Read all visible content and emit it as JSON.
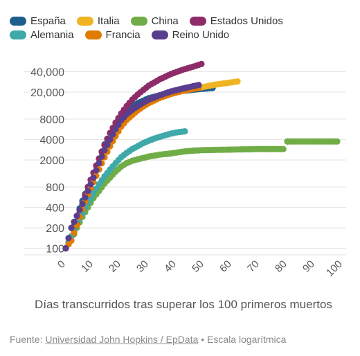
{
  "chart_data": {
    "type": "scatter",
    "xlabel": "Días transcurridos tras superar los 100 primeros muertos",
    "ylabel": "",
    "y_scale": "log",
    "x_ticks": [
      0,
      10,
      20,
      30,
      40,
      50,
      60,
      70,
      80,
      90,
      100
    ],
    "y_ticks": [
      "100",
      "200",
      "400",
      "800",
      "2000",
      "4000",
      "8000",
      "20,000",
      "40,000"
    ],
    "y_tick_values": [
      100,
      200,
      400,
      800,
      2000,
      4000,
      8000,
      20000,
      40000
    ],
    "xlim": [
      0,
      100
    ],
    "ylim": [
      80,
      55000
    ],
    "grid": "horizontal",
    "legend_placement": "top",
    "legend_rows": [
      [
        "España",
        "Italia",
        "China",
        "Estados Unidos"
      ],
      [
        "Alemania",
        "Francia",
        "Reino Unido"
      ]
    ],
    "series": [
      {
        "name": "España",
        "color": "#1f5f8b",
        "points": [
          [
            0,
            100
          ],
          [
            2,
            150
          ],
          [
            4,
            300
          ],
          [
            6,
            500
          ],
          [
            8,
            800
          ],
          [
            10,
            1300
          ],
          [
            12,
            2100
          ],
          [
            14,
            3400
          ],
          [
            16,
            5000
          ],
          [
            18,
            7000
          ],
          [
            20,
            9000
          ],
          [
            22,
            11000
          ],
          [
            24,
            12500
          ],
          [
            26,
            13800
          ],
          [
            28,
            15000
          ],
          [
            30,
            16300
          ],
          [
            34,
            18000
          ],
          [
            38,
            19500
          ],
          [
            42,
            20800
          ],
          [
            46,
            21700
          ],
          [
            50,
            22500
          ],
          [
            53,
            23000
          ]
        ]
      },
      {
        "name": "Italia",
        "color": "#f0b323",
        "points": [
          [
            0,
            100
          ],
          [
            2,
            150
          ],
          [
            4,
            250
          ],
          [
            6,
            450
          ],
          [
            8,
            700
          ],
          [
            10,
            1100
          ],
          [
            12,
            1800
          ],
          [
            14,
            2600
          ],
          [
            16,
            3500
          ],
          [
            18,
            4800
          ],
          [
            20,
            6200
          ],
          [
            22,
            8000
          ],
          [
            24,
            9800
          ],
          [
            26,
            11500
          ],
          [
            28,
            13000
          ],
          [
            30,
            14600
          ],
          [
            34,
            17000
          ],
          [
            38,
            19000
          ],
          [
            42,
            20800
          ],
          [
            46,
            22500
          ],
          [
            50,
            24000
          ],
          [
            54,
            25800
          ],
          [
            58,
            27200
          ],
          [
            62,
            28700
          ]
        ]
      },
      {
        "name": "China",
        "color": "#70ad47",
        "points": [
          [
            0,
            100
          ],
          [
            2,
            130
          ],
          [
            4,
            200
          ],
          [
            6,
            290
          ],
          [
            8,
            400
          ],
          [
            10,
            550
          ],
          [
            12,
            700
          ],
          [
            14,
            900
          ],
          [
            16,
            1100
          ],
          [
            18,
            1350
          ],
          [
            20,
            1600
          ],
          [
            22,
            1800
          ],
          [
            24,
            1950
          ],
          [
            26,
            2050
          ],
          [
            28,
            2150
          ],
          [
            30,
            2250
          ],
          [
            34,
            2400
          ],
          [
            38,
            2500
          ],
          [
            42,
            2650
          ],
          [
            46,
            2750
          ],
          [
            50,
            2800
          ],
          [
            60,
            2850
          ],
          [
            70,
            2900
          ],
          [
            79.5,
            2900
          ],
          [
            80,
            3750
          ],
          [
            85,
            3750
          ],
          [
            90,
            3750
          ],
          [
            98,
            3750
          ]
        ]
      },
      {
        "name": "Estados Unidos",
        "color": "#8e2c6a",
        "points": [
          [
            0,
            100
          ],
          [
            2,
            150
          ],
          [
            4,
            250
          ],
          [
            6,
            450
          ],
          [
            8,
            800
          ],
          [
            10,
            1300
          ],
          [
            12,
            2100
          ],
          [
            14,
            3300
          ],
          [
            16,
            5000
          ],
          [
            18,
            7100
          ],
          [
            20,
            9700
          ],
          [
            22,
            12500
          ],
          [
            24,
            15500
          ],
          [
            26,
            18500
          ],
          [
            28,
            21500
          ],
          [
            30,
            25000
          ],
          [
            34,
            31000
          ],
          [
            38,
            37000
          ],
          [
            42,
            42500
          ],
          [
            46,
            47500
          ],
          [
            49,
            52000
          ]
        ]
      },
      {
        "name": "Alemania",
        "color": "#3fa9a9",
        "points": [
          [
            0,
            100
          ],
          [
            2,
            150
          ],
          [
            4,
            220
          ],
          [
            6,
            330
          ],
          [
            8,
            470
          ],
          [
            10,
            650
          ],
          [
            12,
            880
          ],
          [
            14,
            1150
          ],
          [
            16,
            1450
          ],
          [
            18,
            1800
          ],
          [
            20,
            2200
          ],
          [
            22,
            2550
          ],
          [
            24,
            2900
          ],
          [
            26,
            3200
          ],
          [
            28,
            3550
          ],
          [
            30,
            3850
          ],
          [
            32,
            4150
          ],
          [
            34,
            4400
          ],
          [
            36,
            4650
          ],
          [
            38,
            4900
          ],
          [
            40,
            5100
          ],
          [
            43,
            5300
          ]
        ]
      },
      {
        "name": "Francia",
        "color": "#e07b00",
        "points": [
          [
            0,
            100
          ],
          [
            2,
            130
          ],
          [
            4,
            220
          ],
          [
            6,
            380
          ],
          [
            8,
            620
          ],
          [
            10,
            950
          ],
          [
            12,
            1450
          ],
          [
            14,
            2200
          ],
          [
            16,
            3200
          ],
          [
            18,
            4500
          ],
          [
            20,
            6200
          ],
          [
            22,
            7800
          ],
          [
            24,
            9200
          ],
          [
            26,
            10800
          ],
          [
            28,
            12300
          ],
          [
            30,
            13800
          ],
          [
            34,
            16500
          ],
          [
            38,
            18800
          ],
          [
            42,
            20800
          ],
          [
            46,
            22300
          ],
          [
            48,
            23200
          ]
        ]
      },
      {
        "name": "Reino Unido",
        "color": "#5a3e8e",
        "points": [
          [
            0,
            100
          ],
          [
            2,
            200
          ],
          [
            4,
            300
          ],
          [
            6,
            450
          ],
          [
            8,
            700
          ],
          [
            10,
            1100
          ],
          [
            12,
            1800
          ],
          [
            14,
            2800
          ],
          [
            16,
            4000
          ],
          [
            18,
            5700
          ],
          [
            20,
            7700
          ],
          [
            22,
            9500
          ],
          [
            24,
            11000
          ],
          [
            26,
            12500
          ],
          [
            28,
            14000
          ],
          [
            30,
            15500
          ],
          [
            34,
            18000
          ],
          [
            38,
            20500
          ],
          [
            42,
            22500
          ],
          [
            46,
            24500
          ],
          [
            48,
            25500
          ]
        ]
      }
    ]
  },
  "source": {
    "prefix": "Fuente: ",
    "link": "Universidad John Hopkins / EpData",
    "suffix": " • Escala logarítmica"
  }
}
